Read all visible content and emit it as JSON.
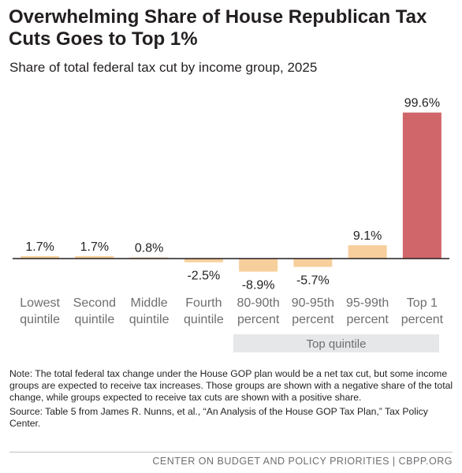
{
  "page": {
    "title": "Overwhelming Share of House Republican Tax Cuts Goes to Top 1%",
    "subtitle": "Share of total federal tax cut by income group, 2025",
    "note": "Note: The total federal tax change under the House GOP plan would be a net tax cut, but some income groups are expected to receive tax increases.  Those groups are shown with a negative share of the total change, while groups expected to receive tax cuts are shown with a positive share.",
    "source": "Source: Table 5 from James R. Nunns, et al., “An Analysis of the House GOP Tax Plan,” Tax Policy Center.",
    "footer": "CENTER ON BUDGET AND POLICY PRIORITIES | CBPP.ORG"
  },
  "chart_data": {
    "type": "bar",
    "categories": [
      [
        "Lowest",
        "quintile"
      ],
      [
        "Second",
        "quintile"
      ],
      [
        "Middle",
        "quintile"
      ],
      [
        "Fourth",
        "quintile"
      ],
      [
        "80-90th",
        "percent"
      ],
      [
        "90-95th",
        "percent"
      ],
      [
        "95-99th",
        "percent"
      ],
      [
        "Top 1",
        "percent"
      ]
    ],
    "values": [
      1.7,
      1.7,
      0.8,
      -2.5,
      -8.9,
      -5.7,
      9.1,
      99.6
    ],
    "labels": [
      "1.7%",
      "1.7%",
      "0.8%",
      "-2.5%",
      "-8.9%",
      "-5.7%",
      "9.1%",
      "99.6%"
    ],
    "unit": "%",
    "group": {
      "label": "Top quintile",
      "from_category": 4,
      "to_category": 7
    },
    "grid": false,
    "colors": {
      "bar": "#f7cf9c",
      "highlight": "#d0666a",
      "axis": "#231f20",
      "group_band": "#e6e7e8"
    }
  }
}
